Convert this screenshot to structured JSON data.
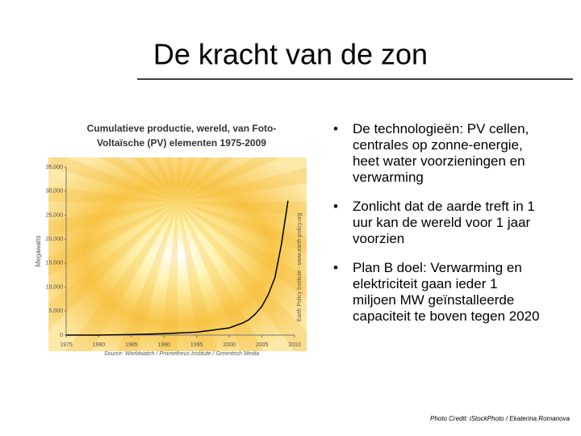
{
  "slide_title": "De kracht van de zon",
  "chart_data": {
    "type": "line",
    "title": "Cumulatieve productie, wereld, van Foto-Voltaïsche (PV) elementen 1975-2009",
    "y_label": "Megawatts",
    "source": "Source: Worldwatch / Prometheus Institute / Greentech Media",
    "side_note": "Earth Policy Institute - www.earth-policy.org",
    "x": [
      1975,
      1980,
      1985,
      1990,
      1995,
      2000,
      2001,
      2002,
      2003,
      2004,
      2005,
      2006,
      2007,
      2008,
      2009
    ],
    "series": [
      {
        "name": "Cumulatieve productie",
        "color": "#000000",
        "values": [
          2,
          10,
          100,
          300,
          600,
          1500,
          2000,
          2500,
          3200,
          4400,
          6000,
          8500,
          12000,
          19000,
          28000
        ]
      }
    ],
    "xlim": [
      1975,
      2010
    ],
    "xticks": [
      1975,
      1980,
      1985,
      1990,
      1995,
      2000,
      2005,
      2010
    ],
    "ylim": [
      0,
      35000
    ],
    "yticks": [
      0,
      {
        "value": 5000,
        "label": "5,000"
      },
      {
        "value": 10000,
        "label": "10,000"
      },
      {
        "value": 15000,
        "label": "15,000"
      },
      {
        "value": 20000,
        "label": "20,000"
      },
      {
        "value": 25000,
        "label": "25,000"
      },
      {
        "value": 30000,
        "label": "30,000"
      },
      {
        "value": 35000,
        "label": "35,000"
      }
    ]
  },
  "bullets": [
    "De technologieën: PV cellen, centrales op zonne-energie, heet water voorzieningen en verwarming",
    "Zonlicht dat de aarde treft in 1 uur kan de wereld voor 1 jaar voorzien",
    "Plan B doel: Verwarming en elektriciteit gaan ieder 1 miljoen MW geïnstalleerde capaciteit te boven tegen 2020"
  ],
  "photo_credit": "Photo Credit: iStockPhoto / Ekaterina Romanova"
}
